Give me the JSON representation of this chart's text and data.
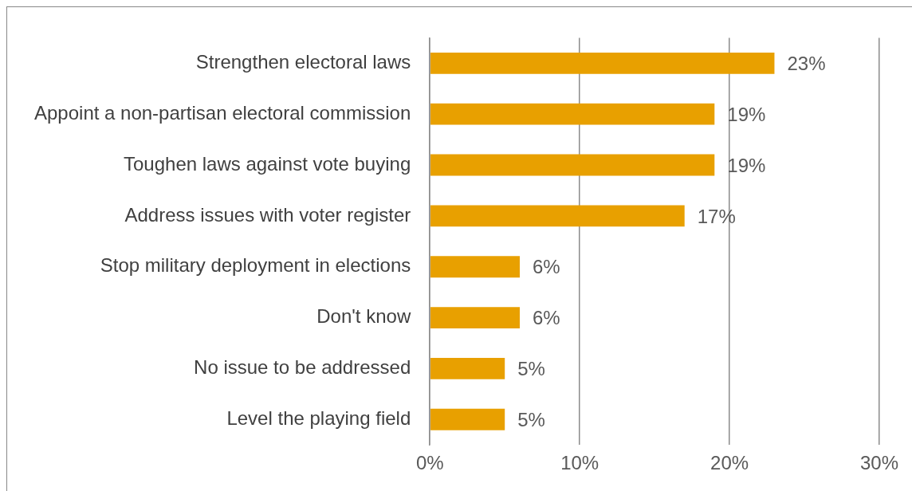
{
  "chart_data": {
    "type": "bar",
    "orientation": "horizontal",
    "categories": [
      "Strengthen electoral laws",
      "Appoint a non-partisan electoral commission",
      "Toughen laws against vote buying",
      "Address issues with voter register",
      "Stop military deployment in elections",
      "Don't know",
      "No issue to be addressed",
      "Level the playing field"
    ],
    "values": [
      23,
      19,
      19,
      17,
      6,
      6,
      5,
      5
    ],
    "value_labels": [
      "23%",
      "19%",
      "19%",
      "17%",
      "6%",
      "6%",
      "5%",
      "5%"
    ],
    "color": "#e8a000",
    "xlim": [
      0,
      30
    ],
    "xticks": [
      {
        "value": 0,
        "label": "0%"
      },
      {
        "value": 10,
        "label": "10%"
      },
      {
        "value": 20,
        "label": "20%"
      },
      {
        "value": 30,
        "label": "30%"
      }
    ],
    "grid": "x"
  }
}
